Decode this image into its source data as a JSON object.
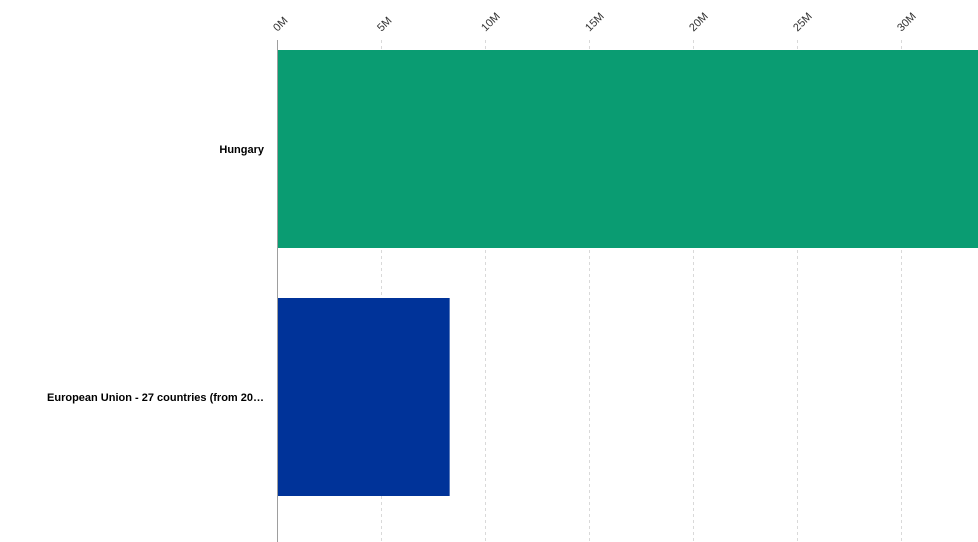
{
  "chart_data": {
    "type": "bar",
    "orientation": "horizontal",
    "categories": [
      "Hungary",
      "European Union - 27 countries (from 20…"
    ],
    "values": [
      33.7,
      8.3
    ],
    "bar_colors": [
      "#0a9c72",
      "#003399"
    ],
    "xlim": [
      0,
      33.7
    ],
    "xticks": [
      0,
      5,
      10,
      15,
      20,
      25,
      30
    ],
    "xtick_labels": [
      "0M",
      "5M",
      "10M",
      "15M",
      "20M",
      "25M",
      "30M"
    ],
    "grid": true,
    "legend": "none",
    "title": "",
    "xlabel": "",
    "ylabel": ""
  }
}
